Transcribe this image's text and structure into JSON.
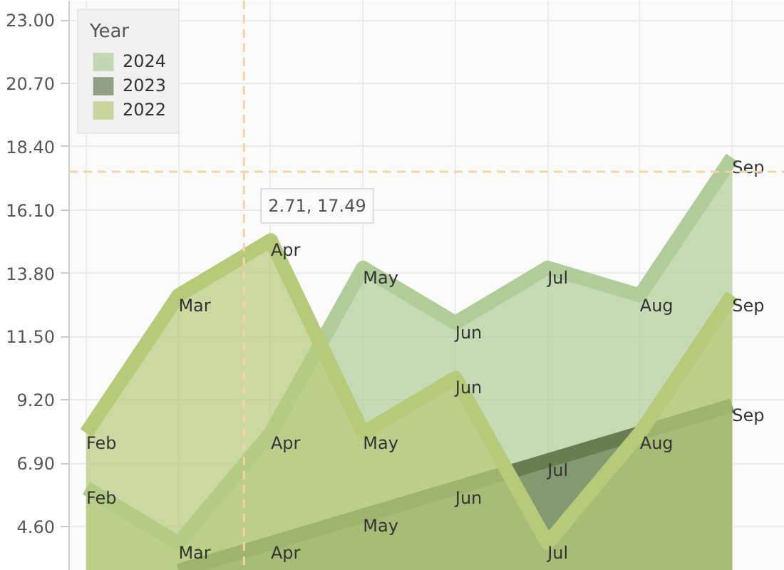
{
  "chart_data": {
    "type": "area",
    "legend_title": "Year",
    "legend": "top left",
    "grid": true,
    "tick_labels": "y",
    "categories": [
      null,
      null,
      null,
      null,
      null,
      null,
      null,
      null
    ],
    "ylim": [
      3.0,
      23.7
    ],
    "yticks": [
      {
        "value": 4.6,
        "label": "4.60"
      },
      {
        "value": 6.9,
        "label": "6.90"
      },
      {
        "value": 9.2,
        "label": "9.20"
      },
      {
        "value": 11.5,
        "label": "11.50"
      },
      {
        "value": 13.8,
        "label": "13.80"
      },
      {
        "value": 16.1,
        "label": "16.10"
      },
      {
        "value": 18.4,
        "label": "18.40"
      },
      {
        "value": 20.7,
        "label": "20.70"
      },
      {
        "value": 23.0,
        "label": "23.00"
      }
    ],
    "series": [
      {
        "name": "2024",
        "color": "#b0cc99",
        "values": [
          6,
          4,
          8,
          14,
          12,
          14,
          13,
          18
        ],
        "value_labels": [
          "Feb",
          "Mar",
          "Apr",
          "May",
          "Jun",
          "Jul",
          "Aug",
          "Sep"
        ]
      },
      {
        "name": "2023",
        "color": "#677e52",
        "values": [
          null,
          3,
          4,
          5,
          6,
          7,
          8,
          9
        ],
        "value_labels": [
          null,
          null,
          "Apr",
          "May",
          "Jun",
          "Jul",
          null,
          "Sep"
        ]
      },
      {
        "name": "2022",
        "color": "#b7ca79",
        "values": [
          8,
          13,
          15,
          8,
          10,
          4,
          8,
          13
        ],
        "value_labels": [
          "Feb",
          "Mar",
          "Apr",
          "May",
          "Jun",
          "Jul",
          "Aug",
          "Sep"
        ]
      }
    ],
    "ref_lines": [
      {
        "axis": "y",
        "value": 17.49,
        "color": "#f5d3a7",
        "line_style": "dashed"
      }
    ],
    "annotations": [
      {
        "text": "2.71, 17.49",
        "y": 17.49
      }
    ]
  }
}
